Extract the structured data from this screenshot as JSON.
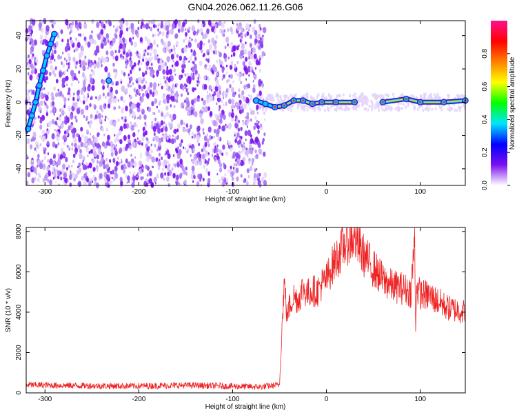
{
  "title": "GN04.2026.062.11.26.G06",
  "chart_data": [
    {
      "type": "heatmap",
      "xlabel": "Height of straight line (km)",
      "ylabel": "Frequency (Hz)",
      "xlim": [
        -320,
        148
      ],
      "ylim": [
        -50,
        49
      ],
      "xticks": [
        -300,
        -200,
        -100,
        0,
        100
      ],
      "yticks": [
        -40,
        -20,
        0,
        20,
        40
      ],
      "noise_region_x": [
        -320,
        -65
      ],
      "noise_color": "#7b10f0",
      "colorbar": {
        "label": "Normalized spectral amplitude",
        "range": [
          0,
          1
        ],
        "ticks": [
          0.0,
          0.2,
          0.4,
          0.6,
          0.8
        ],
        "colors": [
          "#ffffff",
          "#7b10f0",
          "#0000ff",
          "#00e5ff",
          "#00ff00",
          "#ffff00",
          "#ff8000",
          "#ff0000",
          "#ff1090"
        ]
      },
      "signal_track": [
        {
          "x": -318,
          "y": -16
        },
        {
          "x": -314,
          "y": -8
        },
        {
          "x": -310,
          "y": 0
        },
        {
          "x": -306,
          "y": 10
        },
        {
          "x": -302,
          "y": 19
        },
        {
          "x": -298,
          "y": 28
        },
        {
          "x": -294,
          "y": 35
        },
        {
          "x": -290,
          "y": 41
        },
        {
          "x": -232,
          "y": 13
        },
        {
          "x": -75,
          "y": 1
        },
        {
          "x": -65,
          "y": -1
        },
        {
          "x": -55,
          "y": -3
        },
        {
          "x": -45,
          "y": -2
        },
        {
          "x": -35,
          "y": 1
        },
        {
          "x": -25,
          "y": 1
        },
        {
          "x": -15,
          "y": -1
        },
        {
          "x": -5,
          "y": 0
        },
        {
          "x": 10,
          "y": 0
        },
        {
          "x": 30,
          "y": 0
        },
        {
          "x": 60,
          "y": 0
        },
        {
          "x": 85,
          "y": 2
        },
        {
          "x": 100,
          "y": 0
        },
        {
          "x": 125,
          "y": 0
        },
        {
          "x": 148,
          "y": 1
        }
      ]
    },
    {
      "type": "line",
      "xlabel": "Height of straight line (km)",
      "ylabel": "SNR (10 * v/v)",
      "xlim": [
        -320,
        148
      ],
      "ylim": [
        0,
        8200
      ],
      "xticks": [
        -300,
        -200,
        -100,
        0,
        100
      ],
      "yticks": [
        0,
        2000,
        4000,
        6000,
        8000
      ],
      "color": "#ee2222",
      "series": [
        {
          "x": [
            -320,
            -300,
            -250,
            -200,
            -150,
            -100,
            -70,
            -50,
            -48,
            -45,
            -42,
            -40,
            -35,
            -30,
            -25,
            -20,
            -15,
            -10,
            -5,
            0,
            5,
            10,
            15,
            20,
            25,
            30,
            35,
            40,
            50,
            60,
            70,
            80,
            90,
            94,
            95,
            96,
            100,
            110,
            120,
            130,
            140,
            148
          ],
          "y": [
            400,
            380,
            350,
            340,
            380,
            330,
            300,
            400,
            2600,
            5500,
            3800,
            4200,
            4800,
            4600,
            5200,
            4900,
            5100,
            5000,
            5400,
            5600,
            6200,
            6600,
            7000,
            7400,
            7600,
            7700,
            7200,
            6800,
            6200,
            5600,
            5300,
            5200,
            5000,
            7600,
            3200,
            5200,
            4900,
            4800,
            4500,
            4200,
            4100,
            4000
          ]
        }
      ]
    }
  ]
}
